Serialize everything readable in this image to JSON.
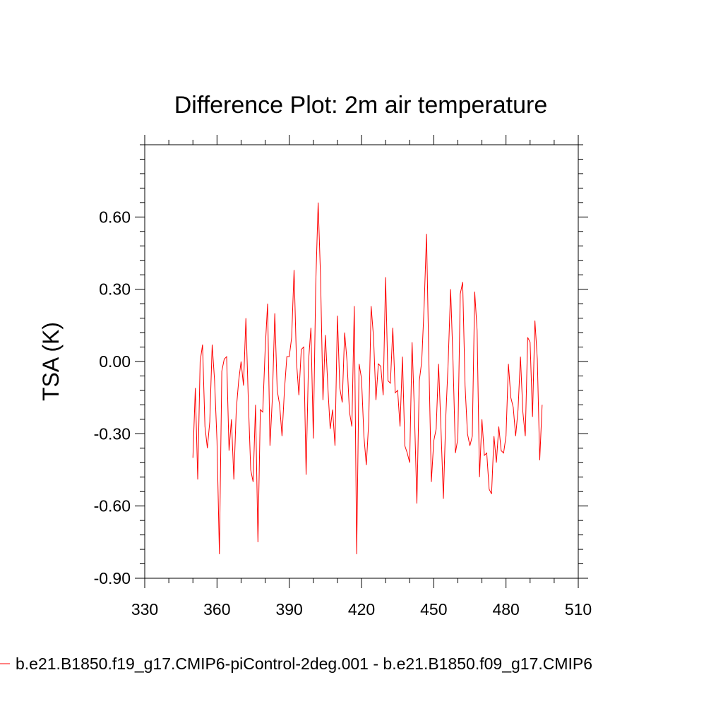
{
  "chart_data": {
    "type": "line",
    "title": "Difference Plot: 2m air temperature",
    "xlabel": "",
    "ylabel": "TSA  (K)",
    "xlim": [
      330,
      510
    ],
    "ylim": [
      -0.9,
      0.9
    ],
    "xticks": [
      330,
      360,
      390,
      420,
      450,
      480,
      510
    ],
    "yticks": [
      -0.9,
      -0.6,
      -0.3,
      0.0,
      0.3,
      0.6
    ],
    "ytick_labels": [
      "-0.90",
      "-0.60",
      "-0.30",
      "0.00",
      "0.30",
      "0.60"
    ],
    "xtick_labels": [
      "330",
      "360",
      "390",
      "420",
      "450",
      "480",
      "510"
    ],
    "grid": false,
    "legend_position": "bottom",
    "series": [
      {
        "name": "b.e21.B1850.f19_g17.CMIP6-piControl-2deg.001 - b.e21.B1850.f09_g17.CMIP6",
        "color": "#ff0000",
        "x_start": 350,
        "x_step": 1,
        "values": [
          -0.4,
          -0.11,
          -0.49,
          0.0,
          0.07,
          -0.27,
          -0.36,
          -0.25,
          0.07,
          -0.08,
          -0.33,
          -0.8,
          -0.04,
          0.01,
          0.02,
          -0.37,
          -0.24,
          -0.49,
          -0.2,
          -0.08,
          0.0,
          -0.1,
          0.18,
          -0.16,
          -0.45,
          -0.5,
          -0.18,
          -0.75,
          -0.2,
          -0.21,
          0.05,
          0.24,
          -0.35,
          -0.15,
          0.2,
          -0.12,
          -0.18,
          -0.31,
          -0.12,
          0.02,
          0.02,
          0.1,
          0.38,
          0.0,
          -0.14,
          0.05,
          0.06,
          -0.47,
          0.0,
          0.14,
          -0.32,
          0.32,
          0.66,
          0.35,
          -0.16,
          0.11,
          -0.1,
          -0.28,
          -0.2,
          -0.35,
          0.19,
          -0.11,
          -0.17,
          0.12,
          0.0,
          -0.21,
          -0.27,
          0.23,
          -0.8,
          -0.01,
          -0.07,
          -0.31,
          -0.43,
          -0.25,
          0.23,
          0.1,
          -0.16,
          -0.01,
          -0.02,
          -0.14,
          0.35,
          -0.08,
          -0.09,
          0.14,
          -0.13,
          -0.12,
          -0.27,
          0.02,
          -0.35,
          -0.38,
          -0.42,
          0.08,
          -0.22,
          -0.59,
          -0.08,
          0.0,
          0.23,
          0.53,
          -0.01,
          -0.5,
          -0.33,
          -0.28,
          -0.01,
          -0.28,
          -0.57,
          -0.23,
          0.0,
          0.3,
          0.0,
          -0.38,
          -0.32,
          0.28,
          0.33,
          -0.1,
          -0.3,
          -0.35,
          -0.31,
          0.29,
          0.13,
          -0.48,
          -0.24,
          -0.39,
          -0.38,
          -0.53,
          -0.55,
          -0.31,
          -0.42,
          -0.27,
          -0.37,
          -0.38,
          -0.31,
          -0.01,
          -0.15,
          -0.19,
          -0.31,
          -0.2,
          0.02,
          -0.21,
          -0.31,
          0.1,
          0.08,
          -0.23,
          0.17,
          0.01,
          -0.41,
          -0.18
        ]
      }
    ]
  }
}
